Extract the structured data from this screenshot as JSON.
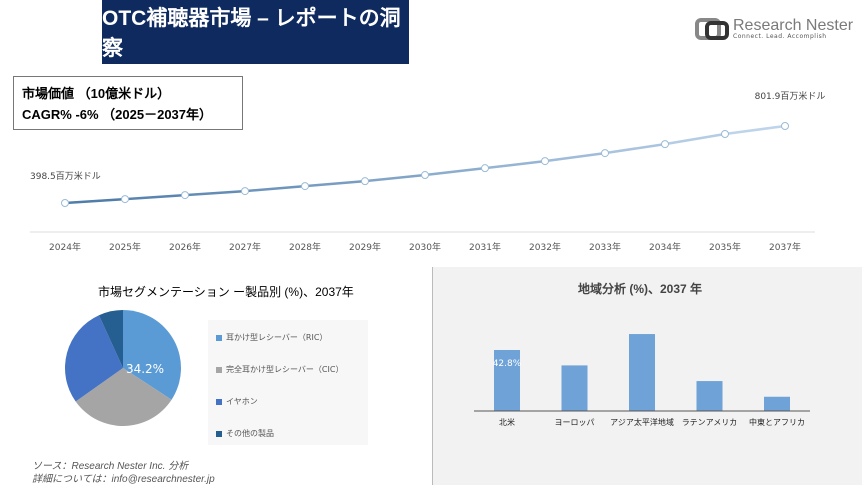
{
  "header": {
    "title": "OTC補聴器市場 – レポートの洞察",
    "logo_name": "Research Nester",
    "logo_tagline": "Connect. Lead. Accomplish"
  },
  "info": {
    "market_value": "市場価値 （10億米ドル）",
    "cagr": "CAGR% -6% （2025－2037年）"
  },
  "chart_data": [
    {
      "type": "line",
      "x": [
        "2024年",
        "2025年",
        "2026年",
        "2027年",
        "2028年",
        "2029年",
        "2030年",
        "2031年",
        "2032年",
        "2033年",
        "2034年",
        "2035年",
        "2037年"
      ],
      "values": [
        398.5,
        419,
        440,
        461,
        487,
        513,
        545,
        581,
        618,
        660,
        707,
        760,
        801.9
      ],
      "first_label": "398.5百万米ドル",
      "last_label": "801.9百万米ドル",
      "grid": false,
      "color": "#5b87b0"
    },
    {
      "type": "pie",
      "title": "市場セグメンテーション ー製品別 (%)、2037年",
      "categories": [
        "耳かけ型レシーバー（RIC）",
        "完全耳かけ型レシーバー（CIC）",
        "イヤホン",
        "その他の製品"
      ],
      "values": [
        34.2,
        31,
        28,
        6.8
      ],
      "data_label": "34.2%",
      "colors": [
        "#5b9bd5",
        "#a5a5a5",
        "#4472c4",
        "#255e91"
      ],
      "legend": "right"
    },
    {
      "type": "bar",
      "title": "地域分析 (%)、2037 年",
      "categories": [
        "北米",
        "ヨーロッパ",
        "アジア太平洋地域",
        "ラテンアメリカ",
        "中東とアフリカ"
      ],
      "values": [
        42.8,
        32,
        54,
        21,
        10
      ],
      "data_label": "42.8%",
      "color": "#6fa3d8"
    }
  ],
  "footer": {
    "source": "ソース：Research Nester Inc. 分析",
    "contact": "詳細については：info@researchnester.jp"
  }
}
